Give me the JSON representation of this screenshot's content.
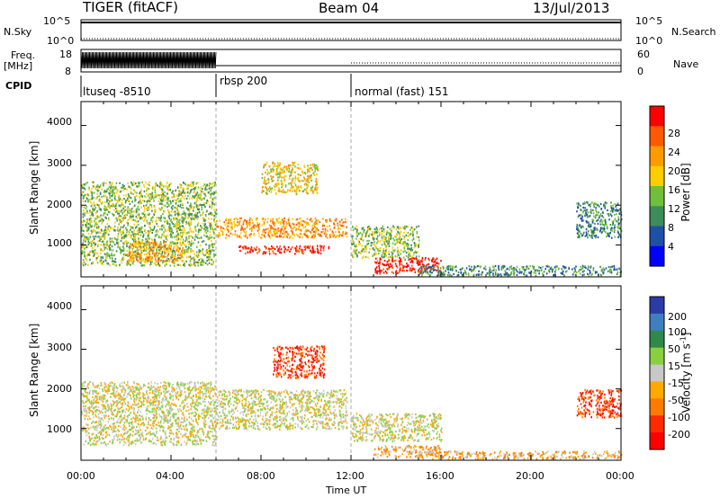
{
  "header": {
    "radar_title": "TIGER (fitACF)",
    "beam": "Beam 04",
    "date": "13/Jul/2013"
  },
  "top_panels": {
    "nsky_label": "N.Sky",
    "nsky_ticks": [
      "10^5",
      "10^0"
    ],
    "nsearch_label": "N.Search",
    "nsearch_ticks": [
      "10^5",
      "10^0"
    ],
    "freq_label_line1": "Freq.",
    "freq_label_line2": "[MHz]",
    "freq_ticks": [
      "18",
      "8"
    ],
    "nave_label": "Nave",
    "nave_ticks": [
      "60",
      "0"
    ],
    "cpid_label": "CPID",
    "cpid_modes": [
      {
        "name": "ltuseq -8510",
        "start_hour": 0
      },
      {
        "name": "rbsp 200",
        "start_hour": 6
      },
      {
        "name": "normal (fast) 151",
        "start_hour": 12
      }
    ]
  },
  "chart_data": [
    {
      "type": "heatmap",
      "title": "",
      "xlabel": "Time UT",
      "ylabel": "Slant Range [km]",
      "x_ticks": [
        "00:00",
        "04:00",
        "08:00",
        "12:00",
        "16:00",
        "20:00",
        "00:00"
      ],
      "xlim": [
        0,
        24
      ],
      "ylim": [
        200,
        4600
      ],
      "y_ticks": [
        "1000",
        "2000",
        "3000",
        "4000"
      ],
      "colorbar_label": "Power [dB]",
      "colorbar_ticks": [
        "4",
        "8",
        "12",
        "16",
        "20",
        "24",
        "28"
      ],
      "colorbar_colors": [
        "#0000ff",
        "#1f50a8",
        "#3d8c5a",
        "#6fbf3a",
        "#ffcc00",
        "#ff9a00",
        "#ff5a00",
        "#ff0000"
      ],
      "regions": [
        {
          "t0": 0.0,
          "t1": 6.0,
          "r0": 500,
          "r1": 2600,
          "level": 3
        },
        {
          "t0": 2.0,
          "t1": 4.5,
          "r0": 600,
          "r1": 1100,
          "level": 5
        },
        {
          "t0": 6.0,
          "t1": 11.8,
          "r0": 1200,
          "r1": 1700,
          "level": 5
        },
        {
          "t0": 7.0,
          "t1": 11.0,
          "r0": 800,
          "r1": 1000,
          "level": 7
        },
        {
          "t0": 8.0,
          "t1": 10.5,
          "r0": 2300,
          "r1": 3100,
          "level": 4
        },
        {
          "t0": 12.0,
          "t1": 15.0,
          "r0": 700,
          "r1": 1500,
          "level": 3
        },
        {
          "t0": 13.0,
          "t1": 16.0,
          "r0": 300,
          "r1": 700,
          "level": 7
        },
        {
          "t0": 15.0,
          "t1": 24.0,
          "r0": 250,
          "r1": 500,
          "level": 2
        },
        {
          "t0": 22.0,
          "t1": 24.0,
          "r0": 1200,
          "r1": 2100,
          "level": 2
        }
      ]
    },
    {
      "type": "heatmap",
      "title": "",
      "xlabel": "Time UT",
      "ylabel": "Slant Range [km]",
      "x_ticks": [
        "00:00",
        "04:00",
        "08:00",
        "12:00",
        "16:00",
        "20:00",
        "00:00"
      ],
      "xlim": [
        0,
        24
      ],
      "ylim": [
        200,
        4600
      ],
      "y_ticks": [
        "1000",
        "2000",
        "3000",
        "4000"
      ],
      "colorbar_label": "Velocity [m s-1]",
      "colorbar_label_main": "Velocity [m s",
      "colorbar_label_sup": "-1",
      "colorbar_label_end": "]",
      "colorbar_ticks": [
        "200",
        "100",
        "50",
        "15",
        "-15",
        "-50",
        "-100",
        "-200"
      ],
      "colorbar_colors": [
        "#2a3ca8",
        "#3f7fc0",
        "#2f8a4a",
        "#88d040",
        "#c8c8c8",
        "#ffaa00",
        "#ff7a00",
        "#ff2a00",
        "#ff0000"
      ],
      "regions": [
        {
          "t0": 0.0,
          "t1": 6.0,
          "r0": 600,
          "r1": 2200,
          "level": 4
        },
        {
          "t0": 6.0,
          "t1": 11.8,
          "r0": 1000,
          "r1": 2000,
          "level": 4
        },
        {
          "t0": 8.5,
          "t1": 10.8,
          "r0": 2300,
          "r1": 3100,
          "level": 7
        },
        {
          "t0": 12.0,
          "t1": 16.0,
          "r0": 700,
          "r1": 1400,
          "level": 4
        },
        {
          "t0": 13.0,
          "t1": 16.0,
          "r0": 300,
          "r1": 600,
          "level": 5
        },
        {
          "t0": 15.0,
          "t1": 24.0,
          "r0": 250,
          "r1": 450,
          "level": 5
        },
        {
          "t0": 22.0,
          "t1": 24.0,
          "r0": 1300,
          "r1": 2000,
          "level": 7
        }
      ]
    }
  ]
}
